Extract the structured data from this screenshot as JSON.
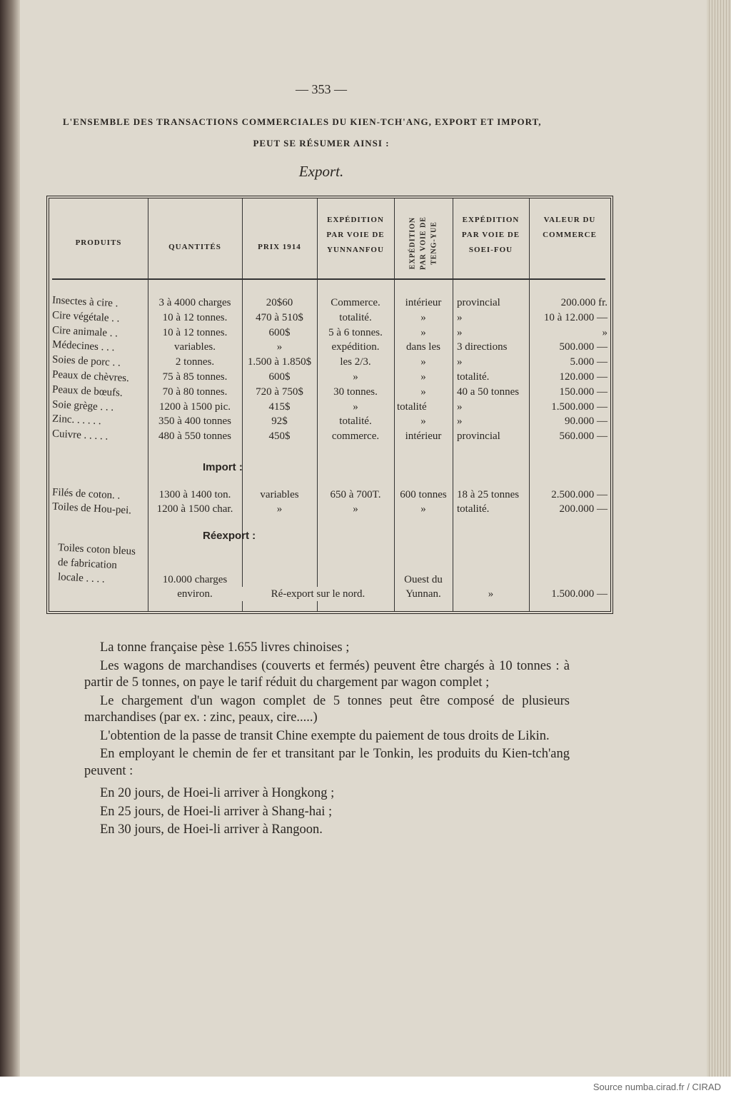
{
  "page_number": "— 353 —",
  "title_line1": "L'ensemble des transactions commerciales du Kien-tch'ang, export et import,",
  "title_line2": "peut se résumer ainsi :",
  "subtitle": "Export.",
  "table": {
    "headers": [
      "PRODUITS",
      "QUANTITÉS",
      "PRIX 1914",
      "EXPÉDITION PAR VOIE DE YUNNANFOU",
      "EXPÉDITION PAR VOIE DE TENG-YUE",
      "EXPÉDITION PAR VOIE DE SOEI-FOU",
      "VALEUR DU COMMERCE"
    ],
    "export_rows": [
      [
        "Insectes à cire .",
        "3 à 4000 charges",
        "20$60",
        "Commerce.",
        "intérieur",
        "provincial",
        "200.000 fr."
      ],
      [
        "Cire végétale . .",
        "10 à 12 tonnes.",
        "470 à 510$",
        "totalité.",
        "»",
        "»",
        "10 à 12.000 —"
      ],
      [
        "Cire animale . .",
        "10 à 12 tonnes.",
        "600$",
        "5 à 6 tonnes.",
        "»",
        "»",
        "»"
      ],
      [
        "Médecines . . .",
        "variables.",
        "»",
        "expédition.",
        "dans les",
        "3 directions",
        "500.000 —"
      ],
      [
        "Soies de porc . .",
        "2 tonnes.",
        "1.500 à 1.850$",
        "les 2/3.",
        "»",
        "»",
        "5.000 —"
      ],
      [
        "Peaux de chèvres.",
        "75 à 85 tonnes.",
        "600$",
        "»",
        "»",
        "totalité.",
        "120.000 —"
      ],
      [
        "Peaux de bœufs.",
        "70 à 80 tonnes.",
        "720 à 750$",
        "30 tonnes.",
        "»",
        "40 a 50 tonnes",
        "150.000 —"
      ],
      [
        "Soie grège . . .",
        "1200 à 1500 pic.",
        "415$",
        "»",
        "totalité",
        "»",
        "1.500.000 —"
      ],
      [
        "Zinc. . . . . .",
        "350 à 400 tonnes",
        "92$",
        "totalité.",
        "»",
        "»",
        "90.000 —"
      ],
      [
        "Cuivre . . . . .",
        "480 à 550 tonnes",
        "450$",
        "commerce.",
        "intérieur",
        "provincial",
        "560.000 —"
      ]
    ],
    "import_label": "Import :",
    "import_rows": [
      [
        "Filés de coton. .",
        "1300 à 1400 ton.",
        "variables",
        "650 à 700T.",
        "600 tonnes",
        "18 à 25 tonnes",
        "2.500.000 —"
      ],
      [
        "Toiles de Hou-pei.",
        "1200 à 1500 char.",
        "»",
        "»",
        "»",
        "totalité.",
        "200.000 —"
      ]
    ],
    "reexport_label": "Réexport :",
    "reexport_row": {
      "product": [
        "Toiles coton bleus",
        "de fabrication",
        "locale . . . ."
      ],
      "quantity": [
        "10.000 charges",
        "environ."
      ],
      "route": "Ré-export sur le nord.",
      "teng_yue": [
        "Ouest du",
        "Yunnan."
      ],
      "soei_fou": "»",
      "value": "1.500.000 —"
    }
  },
  "paragraphs": [
    "La tonne française pèse 1.655 livres chinoises ;",
    "Les wagons de marchandises (couverts et fermés) peuvent être chargés à 10 tonnes : à partir de 5 tonnes, on paye le tarif réduit du chargement par wagon complet ;",
    "Le chargement d'un wagon complet de 5 tonnes peut être composé de plusieurs marchandises (par ex. : zinc, peaux, cire.....)",
    "L'obtention de la passe de transit Chine exempte du paiement de tous droits de Likin.",
    "En employant le chemin de fer et transitant par le Tonkin, les produits du Kien-tch'ang peuvent :",
    "En 20 jours, de Hoei-li arriver à Hongkong ;",
    "En 25 jours, de Hoei-li arriver à Shang-hai ;",
    "En 30 jours, de Hoei-li arriver à Rangoon."
  ],
  "source": "Source numba.cirad.fr / CIRAD"
}
